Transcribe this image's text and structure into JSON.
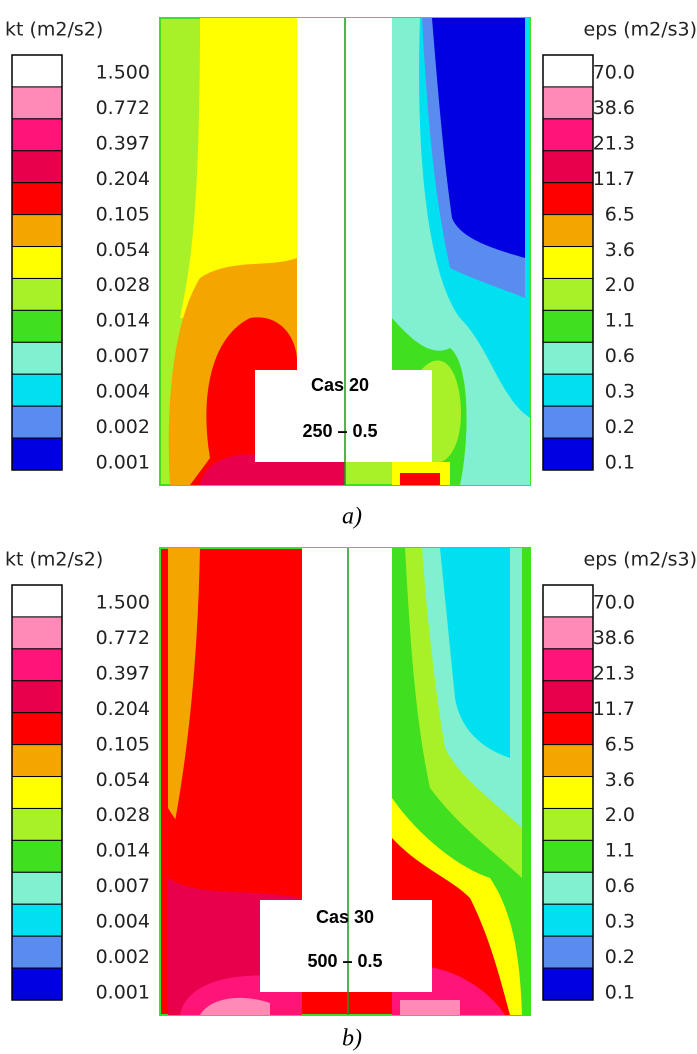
{
  "colors": [
    "#ffffff",
    "#ff8ab8",
    "#ff147a",
    "#e8004c",
    "#ff0000",
    "#f5a500",
    "#ffff00",
    "#a8f028",
    "#40e020",
    "#80f0d0",
    "#00e0f0",
    "#5a8cf0",
    "#0000e0"
  ],
  "panels": [
    {
      "kt": {
        "title": "kt (m2/s2)",
        "labels": [
          "1.500",
          "0.772",
          "0.397",
          "0.204",
          "0.105",
          "0.054",
          "0.028",
          "0.014",
          "0.007",
          "0.004",
          "0.002",
          "0.001"
        ]
      },
      "eps": {
        "title": "eps (m2/s3)",
        "labels": [
          "70.0",
          "38.6",
          "21.3",
          "11.7",
          "6.5",
          "3.6",
          "2.0",
          "1.1",
          "0.6",
          "0.3",
          "0.2",
          "0.1"
        ]
      },
      "case": "Cas 20",
      "params": "250 – 0.5",
      "caption": "a)"
    },
    {
      "kt": {
        "title": "kt (m2/s2)",
        "labels": [
          "1.500",
          "0.772",
          "0.397",
          "0.204",
          "0.105",
          "0.054",
          "0.028",
          "0.014",
          "0.007",
          "0.004",
          "0.002",
          "0.001"
        ]
      },
      "eps": {
        "title": "eps (m2/s3)",
        "labels": [
          "70.0",
          "38.6",
          "21.3",
          "11.7",
          "6.5",
          "3.6",
          "2.0",
          "1.1",
          "0.6",
          "0.3",
          "0.2",
          "0.1"
        ]
      },
      "case": "Cas 30",
      "params": "500 – 0.5",
      "caption": "b)"
    }
  ]
}
